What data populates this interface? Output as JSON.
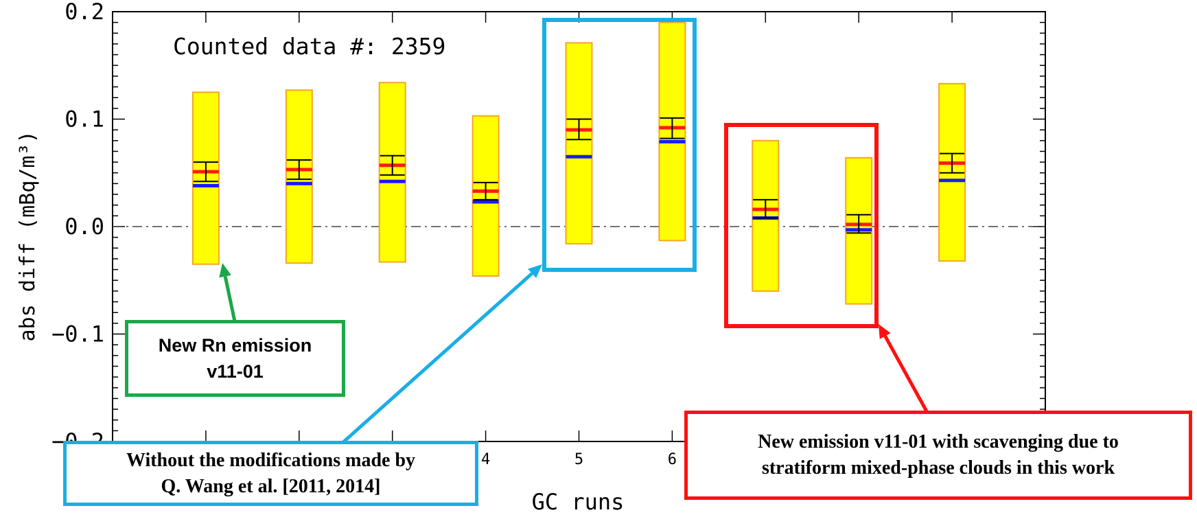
{
  "chart_data": {
    "type": "box",
    "xlabel": "GC runs",
    "ylabel": "abs diff (mBq/m³)",
    "ylim": [
      -0.2,
      0.2
    ],
    "xlim": [
      0,
      10
    ],
    "y_ticks": [
      "0.2",
      "0.1",
      "0.0",
      "−0.1",
      "−0.2"
    ],
    "x_ticks": [
      "4",
      "5",
      "6"
    ],
    "annotation": "Counted data #: 2359",
    "zero_line": true,
    "runs": [
      {
        "run": 1,
        "box_low": -0.035,
        "box_high": 0.125,
        "err_low": 0.042,
        "err_high": 0.06,
        "red": 0.051,
        "blue": 0.038
      },
      {
        "run": 2,
        "box_low": -0.034,
        "box_high": 0.127,
        "err_low": 0.044,
        "err_high": 0.062,
        "red": 0.053,
        "blue": 0.04
      },
      {
        "run": 3,
        "box_low": -0.033,
        "box_high": 0.134,
        "err_low": 0.048,
        "err_high": 0.066,
        "red": 0.057,
        "blue": 0.042
      },
      {
        "run": 4,
        "box_low": -0.046,
        "box_high": 0.103,
        "err_low": 0.025,
        "err_high": 0.041,
        "red": 0.033,
        "blue": 0.023
      },
      {
        "run": 5,
        "box_low": -0.016,
        "box_high": 0.171,
        "err_low": 0.081,
        "err_high": 0.1,
        "red": 0.09,
        "blue": 0.065
      },
      {
        "run": 6,
        "box_low": -0.013,
        "box_high": 0.19,
        "err_low": 0.082,
        "err_high": 0.101,
        "red": 0.092,
        "blue": 0.079
      },
      {
        "run": 7,
        "box_low": -0.06,
        "box_high": 0.08,
        "err_low": 0.008,
        "err_high": 0.025,
        "red": 0.016,
        "blue": 0.008
      },
      {
        "run": 8,
        "box_low": -0.072,
        "box_high": 0.064,
        "err_low": -0.006,
        "err_high": 0.011,
        "red": 0.002,
        "blue": -0.003
      },
      {
        "run": 9,
        "box_low": -0.032,
        "box_high": 0.133,
        "err_low": 0.05,
        "err_high": 0.068,
        "red": 0.059,
        "blue": 0.043
      }
    ],
    "colors": {
      "box_fill": "#ffff00",
      "box_stroke": "#f5a623",
      "mean_line": "#ff1a1a",
      "median_line": "#1a1aff",
      "error_bar": "#000000",
      "zero_line": "#444444"
    }
  },
  "callouts": {
    "green": {
      "line1": "New Rn emission",
      "line2": "v11-01",
      "color": "#1aa84a"
    },
    "blue": {
      "line1": "Without the modifications made by",
      "line2": "Q. Wang et al. [2011, 2014]",
      "color": "#1aaee6"
    },
    "red": {
      "line1": "New emission v11-01 with scavenging due to",
      "line2": "stratiform mixed-phase clouds in this work",
      "color": "#ff1010"
    }
  }
}
